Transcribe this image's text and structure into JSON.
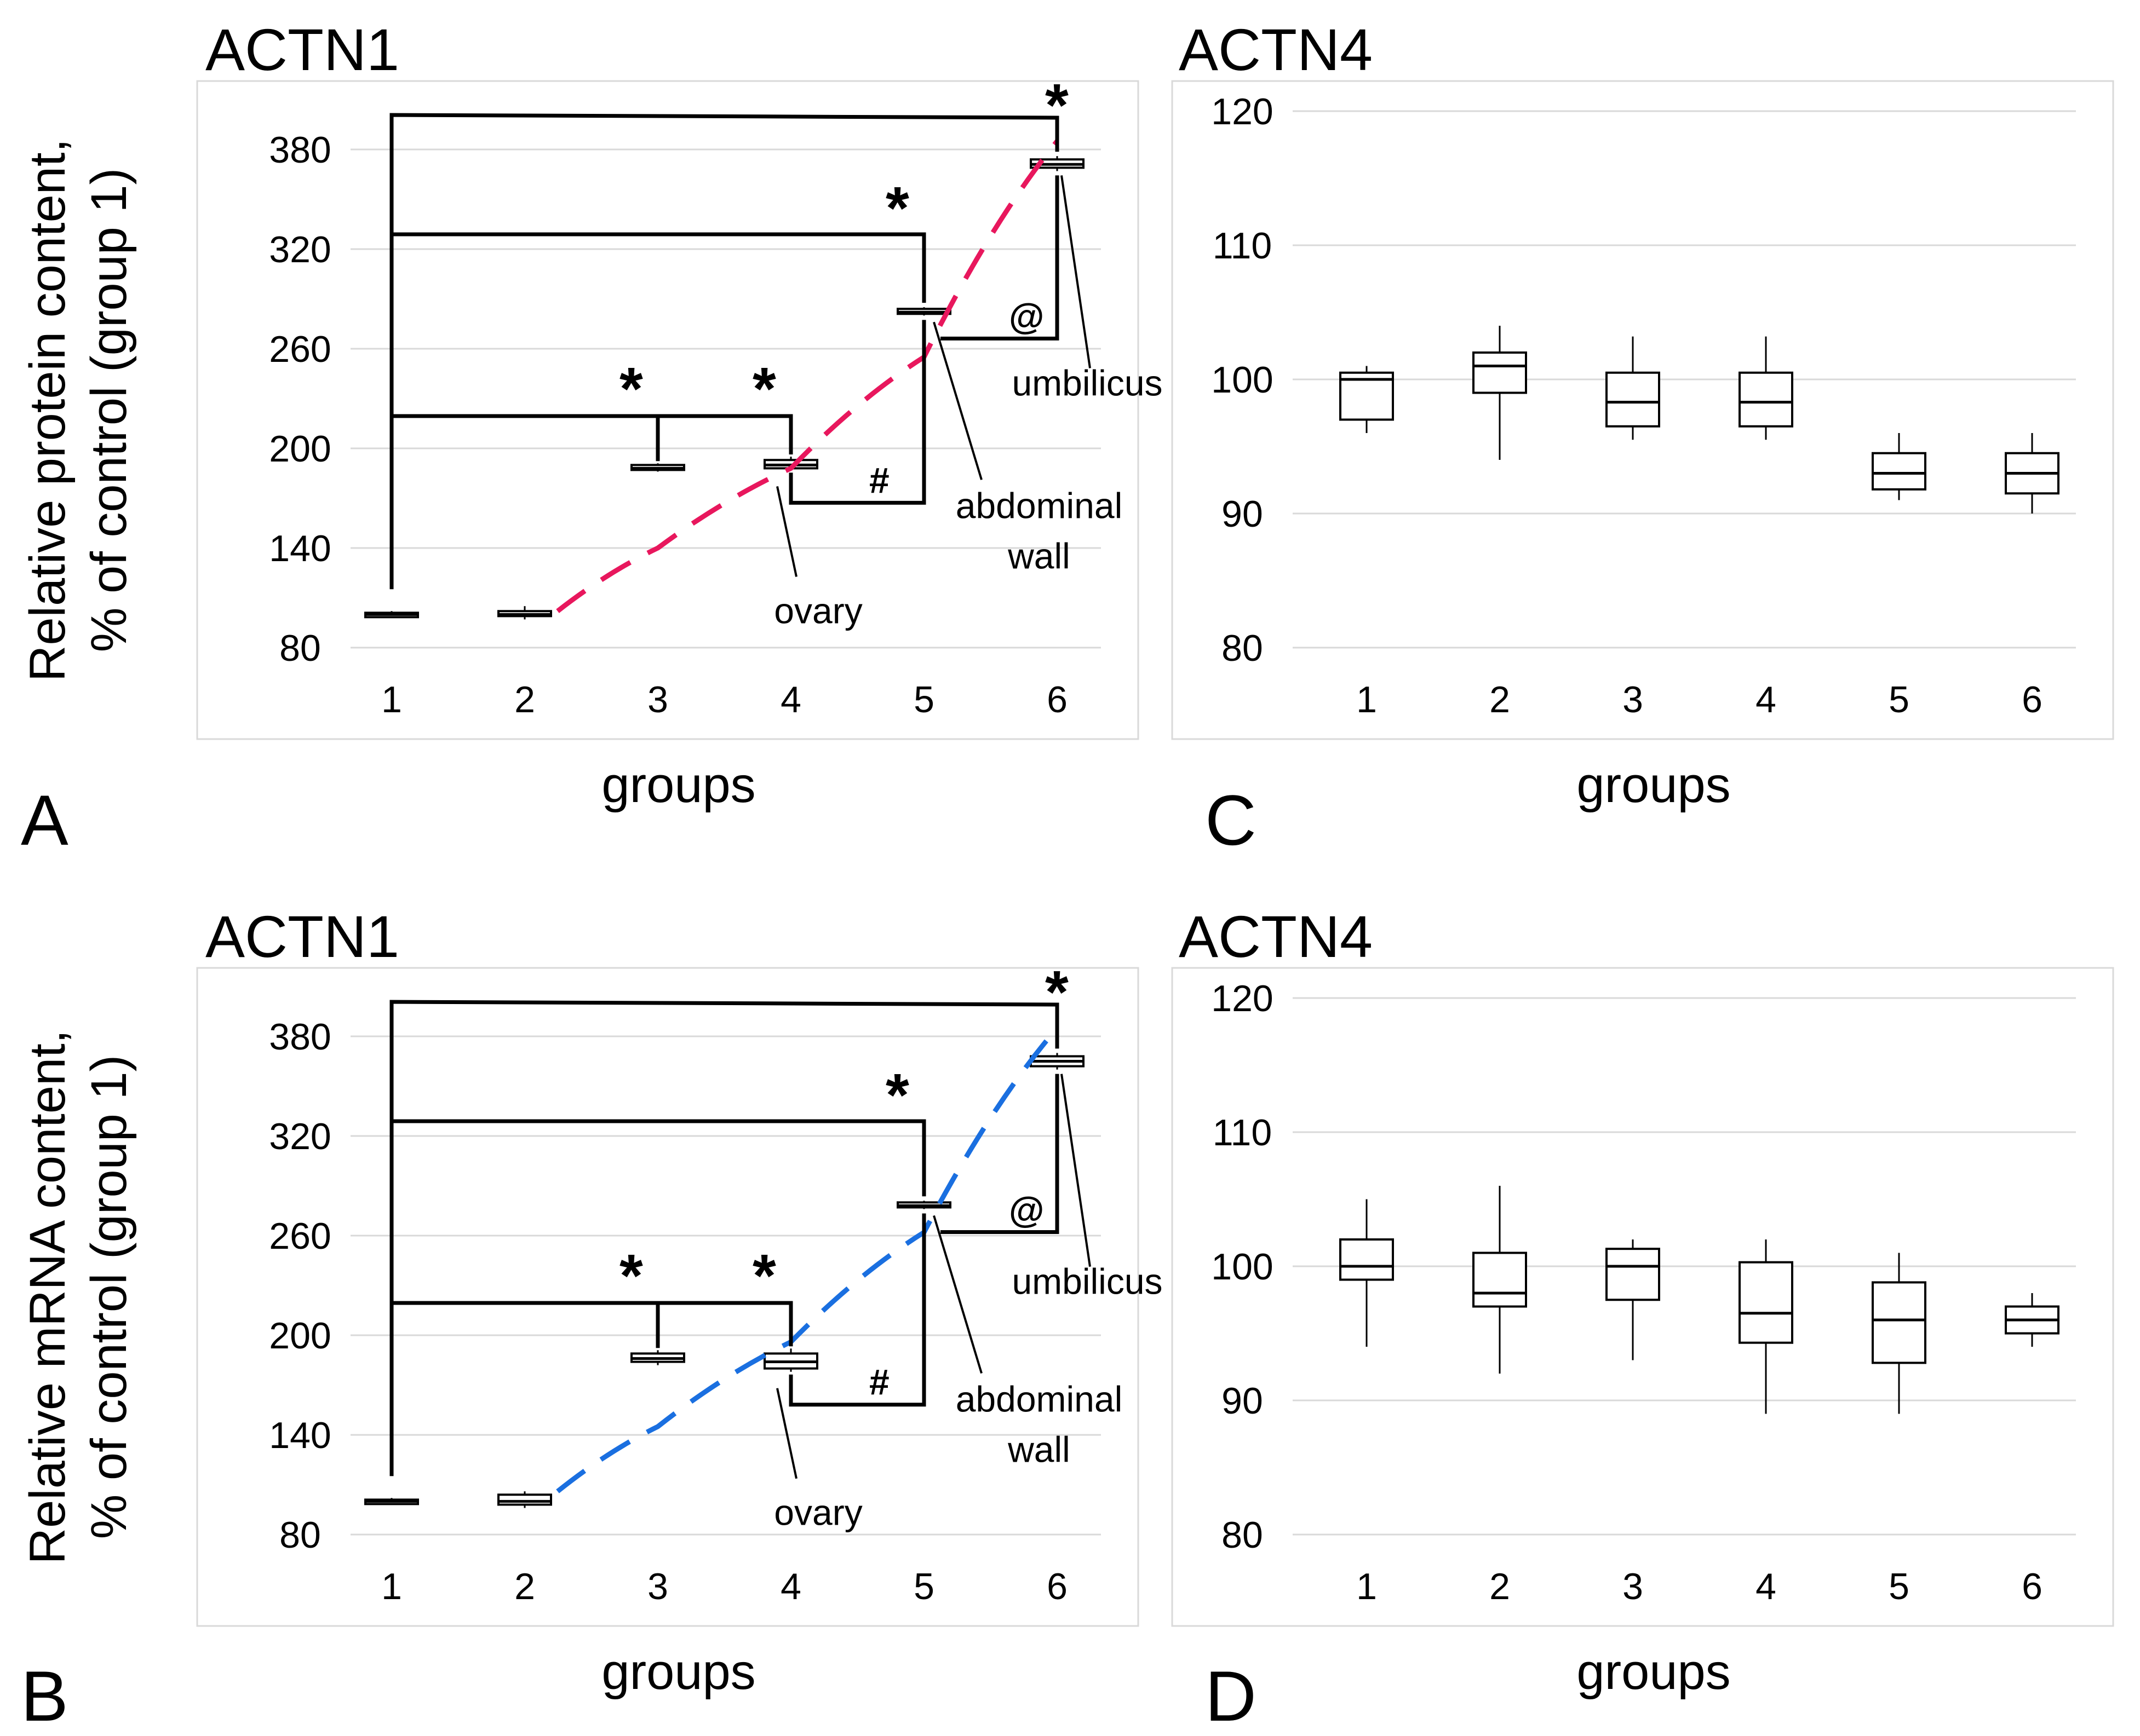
{
  "panels": [
    {
      "id": "A",
      "label": "A",
      "ylabel": [
        "Relative protein content,",
        "% of control (group 1)"
      ],
      "chart_data": {
        "type": "box",
        "title": "ACTN1",
        "xlabel": "groups",
        "ylabel": "Relative protein content, % of control (group 1)",
        "categories": [
          "1",
          "2",
          "3",
          "4",
          "5",
          "6"
        ],
        "yticks": [
          80,
          140,
          200,
          260,
          320,
          380
        ],
        "ylim": [
          62,
          412
        ],
        "series": [
          {
            "group": "1",
            "min": 99,
            "q1": 100,
            "median": 100,
            "q3": 101,
            "max": 102
          },
          {
            "group": "2",
            "min": 97,
            "q1": 99,
            "median": 100,
            "q3": 102,
            "max": 105
          },
          {
            "group": "3",
            "min": 186,
            "q1": 187,
            "median": 188,
            "q3": 190,
            "max": 191
          },
          {
            "group": "4",
            "min": 187,
            "q1": 188,
            "median": 190,
            "q3": 193,
            "max": 195
          },
          {
            "group": "5",
            "min": 280,
            "q1": 281,
            "median": 282,
            "q3": 284,
            "max": 285
          },
          {
            "group": "6",
            "min": 367,
            "q1": 369,
            "median": 371,
            "q3": 374,
            "max": 376
          }
        ],
        "trendline": {
          "color": "#e8175d",
          "style": "dashed",
          "x": [
            2,
            3,
            4,
            5,
            6
          ],
          "y": [
            102,
            140,
            188,
            255,
            385
          ]
        },
        "annotations": [
          "*",
          "*",
          "*",
          "*",
          "#",
          "@",
          "ovary",
          "abdominal",
          "wall",
          "umbilicus"
        ]
      }
    },
    {
      "id": "B",
      "label": "B",
      "ylabel": [
        "Relative mRNA content,",
        "% of control (group 1)"
      ],
      "chart_data": {
        "type": "box",
        "title": "ACTN1",
        "xlabel": "groups",
        "ylabel": "Relative mRNA content, % of control (group 1)",
        "categories": [
          "1",
          "2",
          "3",
          "4",
          "5",
          "6"
        ],
        "yticks": [
          80,
          140,
          200,
          260,
          320,
          380
        ],
        "ylim": [
          62,
          412
        ],
        "series": [
          {
            "group": "1",
            "min": 99,
            "q1": 100,
            "median": 100,
            "q3": 101,
            "max": 102
          },
          {
            "group": "2",
            "min": 96,
            "q1": 98,
            "median": 100,
            "q3": 104,
            "max": 106
          },
          {
            "group": "3",
            "min": 182,
            "q1": 184,
            "median": 186,
            "q3": 189,
            "max": 191
          },
          {
            "group": "4",
            "min": 178,
            "q1": 180,
            "median": 184,
            "q3": 189,
            "max": 192
          },
          {
            "group": "5",
            "min": 276,
            "q1": 277,
            "median": 278,
            "q3": 280,
            "max": 281
          },
          {
            "group": "6",
            "min": 360,
            "q1": 362,
            "median": 365,
            "q3": 368,
            "max": 370
          }
        ],
        "trendline": {
          "color": "#1a6fe0",
          "style": "dashed",
          "x": [
            2,
            3,
            4,
            5,
            6
          ],
          "y": [
            106,
            145,
            196,
            262,
            385
          ]
        },
        "annotations": [
          "*",
          "*",
          "*",
          "*",
          "#",
          "@",
          "ovary",
          "abdominal",
          "wall",
          "umbilicus"
        ]
      }
    },
    {
      "id": "C",
      "label": "C",
      "chart_data": {
        "type": "box",
        "title": "ACTN4",
        "xlabel": "groups",
        "categories": [
          "1",
          "2",
          "3",
          "4",
          "5",
          "6"
        ],
        "yticks": [
          80,
          90,
          100,
          110,
          120
        ],
        "ylim": [
          76.5,
          123
        ],
        "series": [
          {
            "group": "1",
            "min": 96,
            "q1": 97,
            "median": 100,
            "q3": 100.5,
            "max": 101
          },
          {
            "group": "2",
            "min": 94,
            "q1": 99,
            "median": 101,
            "q3": 102,
            "max": 104
          },
          {
            "group": "3",
            "min": 95.5,
            "q1": 96.5,
            "median": 98.3,
            "q3": 100.5,
            "max": 103.2
          },
          {
            "group": "4",
            "min": 95.5,
            "q1": 96.5,
            "median": 98.3,
            "q3": 100.5,
            "max": 103.2
          },
          {
            "group": "5",
            "min": 91,
            "q1": 91.8,
            "median": 93,
            "q3": 94.5,
            "max": 96
          },
          {
            "group": "6",
            "min": 90,
            "q1": 91.5,
            "median": 93,
            "q3": 94.5,
            "max": 96
          }
        ]
      }
    },
    {
      "id": "D",
      "label": "D",
      "chart_data": {
        "type": "box",
        "title": "ACTN4",
        "xlabel": "groups",
        "categories": [
          "1",
          "2",
          "3",
          "4",
          "5",
          "6"
        ],
        "yticks": [
          80,
          90,
          100,
          110,
          120
        ],
        "ylim": [
          76.5,
          123
        ],
        "series": [
          {
            "group": "1",
            "min": 94,
            "q1": 99,
            "median": 100,
            "q3": 102,
            "max": 105
          },
          {
            "group": "2",
            "min": 92,
            "q1": 97,
            "median": 98,
            "q3": 101,
            "max": 106
          },
          {
            "group": "3",
            "min": 93,
            "q1": 97.5,
            "median": 100,
            "q3": 101.3,
            "max": 102
          },
          {
            "group": "4",
            "min": 89,
            "q1": 94.3,
            "median": 96.5,
            "q3": 100.3,
            "max": 102
          },
          {
            "group": "5",
            "min": 89,
            "q1": 92.8,
            "median": 96,
            "q3": 98.8,
            "max": 101
          },
          {
            "group": "6",
            "min": 94,
            "q1": 95,
            "median": 96,
            "q3": 97,
            "max": 98
          }
        ]
      }
    }
  ]
}
